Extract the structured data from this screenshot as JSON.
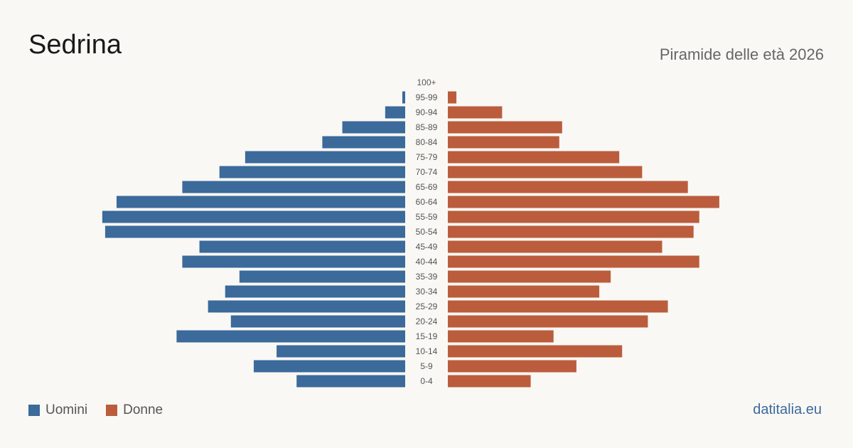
{
  "header": {
    "title": "Sedrina",
    "subtitle": "Piramide delle età 2026"
  },
  "legend": {
    "men_label": "Uomini",
    "women_label": "Donne"
  },
  "brand": "datitalia.eu",
  "colors": {
    "men": "#3b6a9b",
    "women": "#bb5d3d",
    "brand": "#3b6a9b",
    "age_label": "#555555"
  },
  "chart_data": {
    "type": "bar",
    "orientation": "horizontal-pyramid",
    "categories": [
      "100+",
      "95-99",
      "90-94",
      "85-89",
      "80-84",
      "75-79",
      "70-74",
      "65-69",
      "60-64",
      "55-59",
      "50-54",
      "45-49",
      "40-44",
      "35-39",
      "30-34",
      "25-29",
      "20-24",
      "15-19",
      "10-14",
      "5-9",
      "0-4"
    ],
    "series": [
      {
        "name": "Uomini",
        "values": [
          0,
          1,
          7,
          22,
          29,
          56,
          65,
          78,
          101,
          106,
          105,
          72,
          78,
          58,
          63,
          69,
          61,
          80,
          45,
          53,
          38
        ]
      },
      {
        "name": "Donne",
        "values": [
          0,
          3,
          19,
          40,
          39,
          60,
          68,
          84,
          95,
          88,
          86,
          75,
          88,
          57,
          53,
          77,
          70,
          37,
          61,
          45,
          29
        ]
      }
    ],
    "legend_position": "bottom-left",
    "grid": false
  }
}
